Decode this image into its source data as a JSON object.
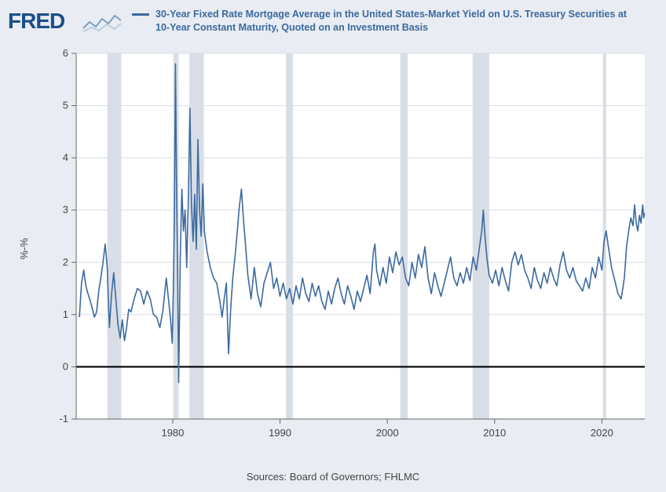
{
  "logo_text": "FRED",
  "legend": {
    "color": "#3b6aa0",
    "label": "30-Year Fixed Rate Mortgage Average in the United States-Market Yield on U.S. Treasury Securities at 10-Year Constant Maturity, Quoted on an Investment Basis"
  },
  "ylabel": "%-%",
  "sources": "Sources: Board of Governors; FHLMC",
  "chart": {
    "type": "line",
    "background_color": "#ffffff",
    "outer_background": "#e9ecf2",
    "grid_color": "#d8dde4",
    "axis_color": "#666666",
    "zero_line_color": "#000000",
    "tick_font_size": 13,
    "tick_color": "#444444",
    "x": {
      "min": 1971,
      "max": 2024,
      "ticks": [
        1980,
        1990,
        2000,
        2010,
        2020
      ]
    },
    "y": {
      "min": -1,
      "max": 6,
      "ticks": [
        -1,
        0,
        1,
        2,
        3,
        4,
        5,
        6
      ]
    },
    "recession_bands": {
      "color": "#d9dee6",
      "ranges": [
        [
          1973.9,
          1975.2
        ],
        [
          1980.05,
          1980.55
        ],
        [
          1981.55,
          1982.9
        ],
        [
          1990.55,
          1991.2
        ],
        [
          2001.2,
          2001.9
        ],
        [
          2007.95,
          2009.5
        ],
        [
          2020.1,
          2020.4
        ]
      ]
    },
    "series": {
      "color": "#3b6aa0",
      "width": 1.6,
      "points": [
        [
          1971.3,
          0.95
        ],
        [
          1971.5,
          1.6
        ],
        [
          1971.7,
          1.85
        ],
        [
          1971.9,
          1.55
        ],
        [
          1972.1,
          1.4
        ],
        [
          1972.4,
          1.2
        ],
        [
          1972.7,
          0.95
        ],
        [
          1972.9,
          1.05
        ],
        [
          1973.1,
          1.45
        ],
        [
          1973.3,
          1.7
        ],
        [
          1973.5,
          2.0
        ],
        [
          1973.7,
          2.35
        ],
        [
          1973.9,
          1.9
        ],
        [
          1974.0,
          1.25
        ],
        [
          1974.1,
          0.75
        ],
        [
          1974.3,
          1.4
        ],
        [
          1974.5,
          1.8
        ],
        [
          1974.7,
          1.3
        ],
        [
          1974.9,
          0.8
        ],
        [
          1975.1,
          0.55
        ],
        [
          1975.3,
          0.9
        ],
        [
          1975.5,
          0.5
        ],
        [
          1975.7,
          0.75
        ],
        [
          1975.9,
          1.1
        ],
        [
          1976.1,
          1.05
        ],
        [
          1976.4,
          1.3
        ],
        [
          1976.7,
          1.5
        ],
        [
          1977.0,
          1.45
        ],
        [
          1977.3,
          1.2
        ],
        [
          1977.6,
          1.45
        ],
        [
          1977.9,
          1.3
        ],
        [
          1978.2,
          1.0
        ],
        [
          1978.5,
          0.95
        ],
        [
          1978.8,
          0.75
        ],
        [
          1979.1,
          1.1
        ],
        [
          1979.4,
          1.7
        ],
        [
          1979.6,
          1.3
        ],
        [
          1979.8,
          0.9
        ],
        [
          1979.95,
          0.45
        ],
        [
          1980.05,
          1.4
        ],
        [
          1980.15,
          2.8
        ],
        [
          1980.25,
          5.8
        ],
        [
          1980.35,
          3.6
        ],
        [
          1980.45,
          1.9
        ],
        [
          1980.55,
          -0.3
        ],
        [
          1980.7,
          2.1
        ],
        [
          1980.85,
          3.4
        ],
        [
          1981.0,
          2.6
        ],
        [
          1981.15,
          3.0
        ],
        [
          1981.3,
          1.9
        ],
        [
          1981.45,
          3.2
        ],
        [
          1981.6,
          4.95
        ],
        [
          1981.75,
          3.1
        ],
        [
          1981.9,
          2.4
        ],
        [
          1982.05,
          3.3
        ],
        [
          1982.2,
          2.25
        ],
        [
          1982.35,
          4.35
        ],
        [
          1982.5,
          3.0
        ],
        [
          1982.65,
          2.5
        ],
        [
          1982.8,
          3.5
        ],
        [
          1982.95,
          2.6
        ],
        [
          1983.2,
          2.2
        ],
        [
          1983.5,
          1.9
        ],
        [
          1983.8,
          1.7
        ],
        [
          1984.1,
          1.6
        ],
        [
          1984.4,
          1.25
        ],
        [
          1984.6,
          0.95
        ],
        [
          1984.8,
          1.3
        ],
        [
          1985.0,
          1.6
        ],
        [
          1985.2,
          0.25
        ],
        [
          1985.4,
          1.1
        ],
        [
          1985.6,
          1.7
        ],
        [
          1985.8,
          2.1
        ],
        [
          1986.0,
          2.55
        ],
        [
          1986.2,
          3.05
        ],
        [
          1986.4,
          3.4
        ],
        [
          1986.6,
          2.8
        ],
        [
          1986.8,
          2.3
        ],
        [
          1987.0,
          1.75
        ],
        [
          1987.3,
          1.3
        ],
        [
          1987.6,
          1.9
        ],
        [
          1987.9,
          1.4
        ],
        [
          1988.2,
          1.15
        ],
        [
          1988.5,
          1.6
        ],
        [
          1988.8,
          1.8
        ],
        [
          1989.1,
          2.0
        ],
        [
          1989.4,
          1.5
        ],
        [
          1989.7,
          1.7
        ],
        [
          1990.0,
          1.35
        ],
        [
          1990.3,
          1.6
        ],
        [
          1990.6,
          1.3
        ],
        [
          1990.9,
          1.5
        ],
        [
          1991.2,
          1.2
        ],
        [
          1991.5,
          1.55
        ],
        [
          1991.8,
          1.3
        ],
        [
          1992.1,
          1.7
        ],
        [
          1992.4,
          1.4
        ],
        [
          1992.7,
          1.25
        ],
        [
          1993.0,
          1.6
        ],
        [
          1993.3,
          1.35
        ],
        [
          1993.6,
          1.55
        ],
        [
          1993.9,
          1.25
        ],
        [
          1994.2,
          1.1
        ],
        [
          1994.5,
          1.45
        ],
        [
          1994.8,
          1.2
        ],
        [
          1995.1,
          1.5
        ],
        [
          1995.4,
          1.7
        ],
        [
          1995.7,
          1.4
        ],
        [
          1996.0,
          1.2
        ],
        [
          1996.3,
          1.55
        ],
        [
          1996.6,
          1.35
        ],
        [
          1996.9,
          1.1
        ],
        [
          1997.2,
          1.45
        ],
        [
          1997.5,
          1.25
        ],
        [
          1997.8,
          1.5
        ],
        [
          1998.1,
          1.75
        ],
        [
          1998.4,
          1.4
        ],
        [
          1998.7,
          2.2
        ],
        [
          1998.85,
          2.35
        ],
        [
          1999.0,
          1.85
        ],
        [
          1999.3,
          1.55
        ],
        [
          1999.6,
          1.9
        ],
        [
          1999.9,
          1.6
        ],
        [
          2000.2,
          2.1
        ],
        [
          2000.5,
          1.8
        ],
        [
          2000.8,
          2.2
        ],
        [
          2001.1,
          1.95
        ],
        [
          2001.4,
          2.1
        ],
        [
          2001.7,
          1.7
        ],
        [
          2002.0,
          1.55
        ],
        [
          2002.3,
          2.0
        ],
        [
          2002.6,
          1.7
        ],
        [
          2002.9,
          2.15
        ],
        [
          2003.2,
          1.9
        ],
        [
          2003.5,
          2.3
        ],
        [
          2003.8,
          1.7
        ],
        [
          2004.1,
          1.4
        ],
        [
          2004.4,
          1.8
        ],
        [
          2004.7,
          1.55
        ],
        [
          2005.0,
          1.35
        ],
        [
          2005.3,
          1.6
        ],
        [
          2005.6,
          1.85
        ],
        [
          2005.9,
          2.1
        ],
        [
          2006.2,
          1.7
        ],
        [
          2006.5,
          1.55
        ],
        [
          2006.8,
          1.8
        ],
        [
          2007.1,
          1.6
        ],
        [
          2007.4,
          1.9
        ],
        [
          2007.7,
          1.65
        ],
        [
          2008.0,
          2.1
        ],
        [
          2008.3,
          1.85
        ],
        [
          2008.6,
          2.3
        ],
        [
          2008.8,
          2.6
        ],
        [
          2008.95,
          3.0
        ],
        [
          2009.1,
          2.5
        ],
        [
          2009.3,
          2.05
        ],
        [
          2009.5,
          1.75
        ],
        [
          2009.8,
          1.6
        ],
        [
          2010.1,
          1.85
        ],
        [
          2010.4,
          1.55
        ],
        [
          2010.7,
          1.9
        ],
        [
          2011.0,
          1.65
        ],
        [
          2011.3,
          1.45
        ],
        [
          2011.6,
          2.0
        ],
        [
          2011.9,
          2.2
        ],
        [
          2012.2,
          1.95
        ],
        [
          2012.5,
          2.15
        ],
        [
          2012.8,
          1.85
        ],
        [
          2013.1,
          1.7
        ],
        [
          2013.4,
          1.5
        ],
        [
          2013.7,
          1.9
        ],
        [
          2014.0,
          1.65
        ],
        [
          2014.3,
          1.5
        ],
        [
          2014.6,
          1.8
        ],
        [
          2014.9,
          1.6
        ],
        [
          2015.2,
          1.9
        ],
        [
          2015.5,
          1.7
        ],
        [
          2015.8,
          1.55
        ],
        [
          2016.1,
          1.95
        ],
        [
          2016.4,
          2.2
        ],
        [
          2016.7,
          1.85
        ],
        [
          2017.0,
          1.7
        ],
        [
          2017.3,
          1.9
        ],
        [
          2017.6,
          1.65
        ],
        [
          2017.9,
          1.55
        ],
        [
          2018.2,
          1.45
        ],
        [
          2018.5,
          1.7
        ],
        [
          2018.8,
          1.5
        ],
        [
          2019.1,
          1.9
        ],
        [
          2019.4,
          1.7
        ],
        [
          2019.7,
          2.1
        ],
        [
          2020.0,
          1.85
        ],
        [
          2020.2,
          2.4
        ],
        [
          2020.4,
          2.6
        ],
        [
          2020.6,
          2.3
        ],
        [
          2020.9,
          1.9
        ],
        [
          2021.2,
          1.65
        ],
        [
          2021.5,
          1.4
        ],
        [
          2021.8,
          1.3
        ],
        [
          2022.1,
          1.7
        ],
        [
          2022.3,
          2.3
        ],
        [
          2022.5,
          2.6
        ],
        [
          2022.7,
          2.85
        ],
        [
          2022.9,
          2.7
        ],
        [
          2023.05,
          3.1
        ],
        [
          2023.2,
          2.75
        ],
        [
          2023.35,
          2.6
        ],
        [
          2023.5,
          2.9
        ],
        [
          2023.65,
          2.75
        ],
        [
          2023.8,
          3.1
        ],
        [
          2023.9,
          2.85
        ],
        [
          2024.0,
          2.95
        ]
      ]
    }
  }
}
